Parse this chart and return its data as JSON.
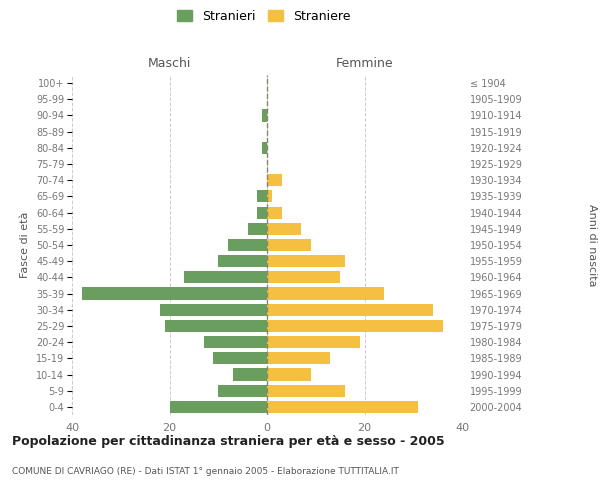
{
  "age_groups": [
    "0-4",
    "5-9",
    "10-14",
    "15-19",
    "20-24",
    "25-29",
    "30-34",
    "35-39",
    "40-44",
    "45-49",
    "50-54",
    "55-59",
    "60-64",
    "65-69",
    "70-74",
    "75-79",
    "80-84",
    "85-89",
    "90-94",
    "95-99",
    "100+"
  ],
  "birth_years": [
    "2000-2004",
    "1995-1999",
    "1990-1994",
    "1985-1989",
    "1980-1984",
    "1975-1979",
    "1970-1974",
    "1965-1969",
    "1960-1964",
    "1955-1959",
    "1950-1954",
    "1945-1949",
    "1940-1944",
    "1935-1939",
    "1930-1934",
    "1925-1929",
    "1920-1924",
    "1915-1919",
    "1910-1914",
    "1905-1909",
    "≤ 1904"
  ],
  "maschi": [
    20,
    10,
    7,
    11,
    13,
    21,
    22,
    38,
    17,
    10,
    8,
    4,
    2,
    2,
    0,
    0,
    1,
    0,
    1,
    0,
    0
  ],
  "femmine": [
    31,
    16,
    9,
    13,
    19,
    36,
    34,
    24,
    15,
    16,
    9,
    7,
    3,
    1,
    3,
    0,
    0,
    0,
    0,
    0,
    0
  ],
  "maschi_color": "#6a9e5e",
  "femmine_color": "#f5c041",
  "background_color": "#ffffff",
  "grid_color": "#cccccc",
  "title": "Popolazione per cittadinanza straniera per età e sesso - 2005",
  "subtitle": "COMUNE DI CAVRIAGO (RE) - Dati ISTAT 1° gennaio 2005 - Elaborazione TUTTITALIA.IT",
  "ylabel_left": "Fasce di età",
  "ylabel_right": "Anni di nascita",
  "legend_stranieri": "Stranieri",
  "legend_straniere": "Straniere",
  "maschi_label": "Maschi",
  "femmine_label": "Femmine",
  "xlim": 40
}
